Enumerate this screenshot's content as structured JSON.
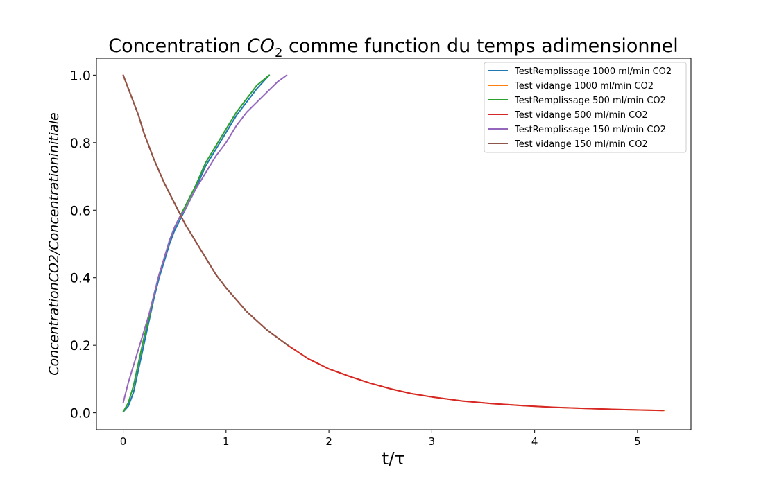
{
  "chart_data": {
    "type": "line",
    "title": {
      "main": "Concentration ",
      "sym": "CO",
      "sub": "2",
      "rest": " comme function du temps adimensionnel"
    },
    "xlabel": "t/τ",
    "ylabel": "ConcentrationCO2/Concentrationinitiale",
    "xlim": [
      -0.26,
      5.52
    ],
    "ylim": [
      -0.05,
      1.05
    ],
    "xticks": [
      0,
      1,
      2,
      3,
      4,
      5
    ],
    "xtick_labels": [
      "0",
      "1",
      "2",
      "3",
      "4",
      "5"
    ],
    "yticks": [
      0.0,
      0.2,
      0.4,
      0.6,
      0.8,
      1.0
    ],
    "ytick_labels": [
      "0.0",
      "0.2",
      "0.4",
      "0.6",
      "0.8",
      "1.0"
    ],
    "grid": false,
    "legend_position": "top-right",
    "series": [
      {
        "name": "TestRemplissage 1000 ml/min CO2",
        "color": "#1f77b4",
        "x": [
          0,
          0.05,
          0.1,
          0.15,
          0.2,
          0.25,
          0.3,
          0.35,
          0.4,
          0.45,
          0.5,
          0.55,
          0.6,
          0.7,
          0.8,
          0.9,
          1.0,
          1.1,
          1.2,
          1.3,
          1.42
        ],
        "y": [
          0.003,
          0.02,
          0.06,
          0.13,
          0.2,
          0.27,
          0.34,
          0.4,
          0.45,
          0.5,
          0.54,
          0.57,
          0.6,
          0.66,
          0.73,
          0.78,
          0.83,
          0.88,
          0.92,
          0.96,
          1.0
        ]
      },
      {
        "name": "Test vidange 1000 ml/min CO2",
        "color": "#ff7f0e",
        "x": [
          0,
          0.05,
          0.1,
          0.15,
          0.2,
          0.3,
          0.4,
          0.5,
          0.6,
          0.7,
          0.8,
          0.9,
          1.0,
          1.2,
          1.4,
          1.6,
          1.8,
          2.0,
          2.2,
          2.4,
          2.6,
          2.8,
          3.0,
          3.3,
          3.6,
          3.9,
          4.2,
          4.5,
          4.8,
          5.1,
          5.26
        ],
        "y": [
          1.0,
          0.96,
          0.92,
          0.88,
          0.83,
          0.75,
          0.68,
          0.62,
          0.56,
          0.51,
          0.46,
          0.41,
          0.37,
          0.3,
          0.245,
          0.2,
          0.16,
          0.13,
          0.108,
          0.088,
          0.071,
          0.057,
          0.047,
          0.035,
          0.027,
          0.021,
          0.016,
          0.013,
          0.01,
          0.008,
          0.007
        ]
      },
      {
        "name": "TestRemplissage 500 ml/min CO2",
        "color": "#2ca02c",
        "x": [
          0,
          0.05,
          0.1,
          0.15,
          0.2,
          0.25,
          0.3,
          0.35,
          0.4,
          0.45,
          0.5,
          0.55,
          0.6,
          0.7,
          0.8,
          0.9,
          1.0,
          1.1,
          1.2,
          1.3,
          1.42
        ],
        "y": [
          0.003,
          0.03,
          0.08,
          0.15,
          0.22,
          0.28,
          0.35,
          0.41,
          0.46,
          0.51,
          0.55,
          0.58,
          0.61,
          0.67,
          0.74,
          0.79,
          0.84,
          0.89,
          0.93,
          0.97,
          1.0
        ]
      },
      {
        "name": "Test vidange 500 ml/min CO2",
        "color": "#d62728",
        "x": [
          0,
          0.05,
          0.1,
          0.15,
          0.2,
          0.3,
          0.4,
          0.5,
          0.6,
          0.7,
          0.8,
          0.9,
          1.0,
          1.2,
          1.4,
          1.6,
          1.8,
          2.0,
          2.2,
          2.4,
          2.6,
          2.8,
          3.0,
          3.3,
          3.6,
          3.9,
          4.2,
          4.5,
          4.8,
          5.1,
          5.25
        ],
        "y": [
          1.0,
          0.96,
          0.92,
          0.88,
          0.83,
          0.75,
          0.68,
          0.62,
          0.56,
          0.51,
          0.46,
          0.41,
          0.37,
          0.3,
          0.245,
          0.2,
          0.16,
          0.13,
          0.108,
          0.088,
          0.071,
          0.057,
          0.047,
          0.035,
          0.027,
          0.021,
          0.016,
          0.013,
          0.01,
          0.008,
          0.007
        ]
      },
      {
        "name": "TestRemplissage 150 ml/min CO2",
        "color": "#9467bd",
        "x": [
          0,
          0.05,
          0.1,
          0.15,
          0.2,
          0.25,
          0.3,
          0.35,
          0.4,
          0.45,
          0.5,
          0.55,
          0.6,
          0.7,
          0.8,
          0.9,
          1.0,
          1.1,
          1.2,
          1.3,
          1.4,
          1.5,
          1.59
        ],
        "y": [
          0.03,
          0.09,
          0.14,
          0.19,
          0.24,
          0.29,
          0.35,
          0.41,
          0.46,
          0.51,
          0.55,
          0.58,
          0.6,
          0.66,
          0.71,
          0.76,
          0.8,
          0.85,
          0.89,
          0.92,
          0.95,
          0.98,
          1.0
        ]
      },
      {
        "name": "Test vidange 150 ml/min CO2",
        "color": "#8c564b",
        "x": [
          0,
          0.05,
          0.1,
          0.15,
          0.2,
          0.3,
          0.4,
          0.5,
          0.6,
          0.7,
          0.8,
          0.9,
          1.0,
          1.2,
          1.4,
          1.6
        ],
        "y": [
          1.0,
          0.96,
          0.92,
          0.88,
          0.83,
          0.75,
          0.68,
          0.62,
          0.56,
          0.51,
          0.46,
          0.41,
          0.37,
          0.3,
          0.245,
          0.2
        ]
      }
    ]
  }
}
